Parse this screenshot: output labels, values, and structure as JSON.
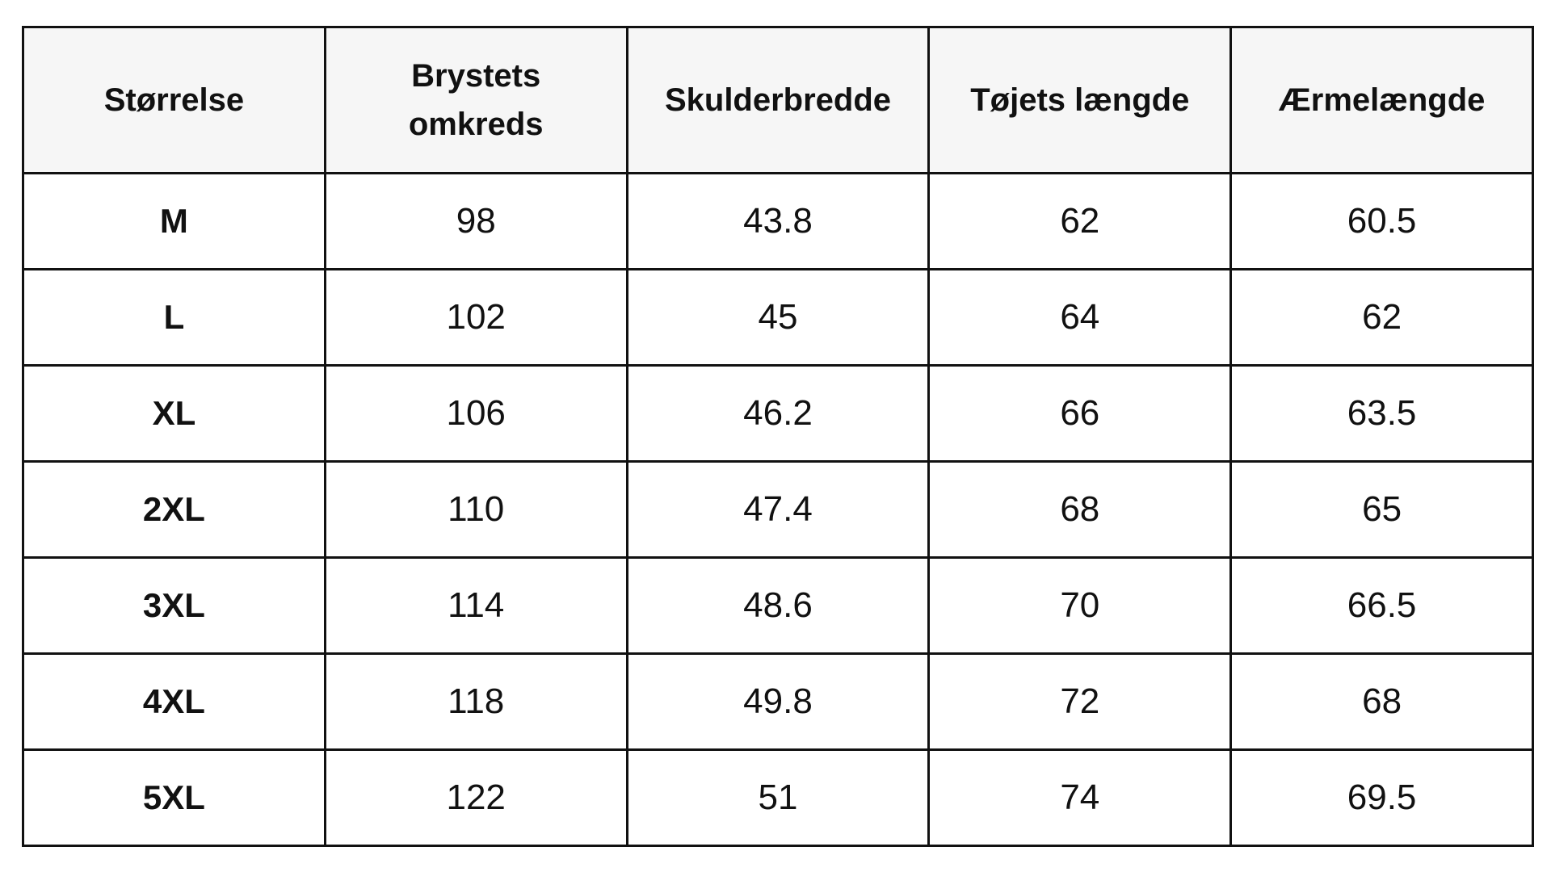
{
  "table": {
    "header": [
      "Størrelse",
      "Brystets omkreds",
      "Skulderbredde",
      "Tøjets længde",
      "Ærmelængde"
    ],
    "rows": [
      [
        "M",
        98,
        43.8,
        62,
        60.5
      ],
      [
        "L",
        102,
        45,
        64,
        62
      ],
      [
        "XL",
        106,
        46.2,
        66,
        63.5
      ],
      [
        "2XL",
        110,
        47.4,
        68,
        65
      ],
      [
        "3XL",
        114,
        48.6,
        70,
        66.5
      ],
      [
        "4XL",
        118,
        49.8,
        72,
        68
      ],
      [
        "5XL",
        122,
        51,
        74,
        69.5
      ]
    ]
  }
}
